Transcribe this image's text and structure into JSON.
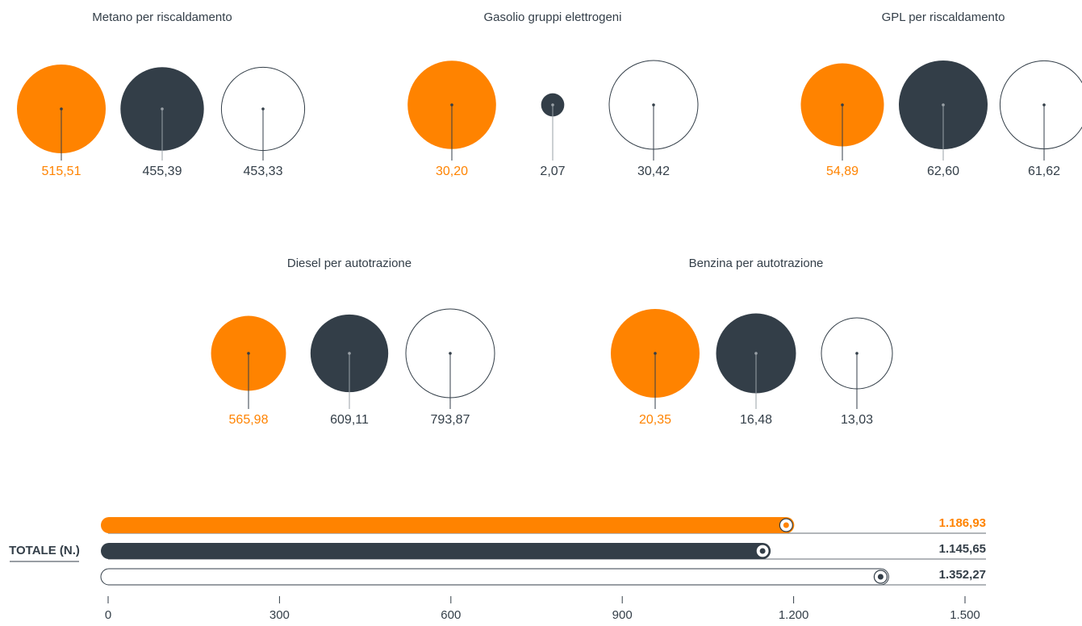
{
  "chart_data": [
    {
      "type": "bubble",
      "title": "Metano per riscaldamento",
      "values": [
        515.51,
        455.39,
        453.33
      ],
      "value_labels": [
        "515,51",
        "455,39",
        "453,33"
      ],
      "colors": [
        "#ff8300",
        "#333e48",
        "#ffffff"
      ]
    },
    {
      "type": "bubble",
      "title": "Gasolio gruppi elettrogeni",
      "values": [
        30.2,
        2.07,
        30.42
      ],
      "value_labels": [
        "30,20",
        "2,07",
        "30,42"
      ],
      "colors": [
        "#ff8300",
        "#333e48",
        "#ffffff"
      ]
    },
    {
      "type": "bubble",
      "title": "GPL per riscaldamento",
      "values": [
        54.89,
        62.6,
        61.62
      ],
      "value_labels": [
        "54,89",
        "62,60",
        "61,62"
      ],
      "colors": [
        "#ff8300",
        "#333e48",
        "#ffffff"
      ]
    },
    {
      "type": "bubble",
      "title": "Diesel per autotrazione",
      "values": [
        565.98,
        609.11,
        793.87
      ],
      "value_labels": [
        "565,98",
        "609,11",
        "793,87"
      ],
      "colors": [
        "#ff8300",
        "#333e48",
        "#ffffff"
      ]
    },
    {
      "type": "bubble",
      "title": "Benzina per autotrazione",
      "values": [
        20.35,
        16.48,
        13.03
      ],
      "value_labels": [
        "20,35",
        "16,48",
        "13,03"
      ],
      "colors": [
        "#ff8300",
        "#333e48",
        "#ffffff"
      ]
    },
    {
      "type": "bar",
      "orientation": "horizontal",
      "label": "TOTALE (N.)",
      "values": [
        1186.93,
        1145.65,
        1352.27
      ],
      "value_labels": [
        "1.186,93",
        "1.145,65",
        "1.352,27"
      ],
      "colors": [
        "#ff8300",
        "#333e48",
        "#ffffff"
      ],
      "xlim": [
        0,
        1500
      ],
      "xticks": [
        0,
        300,
        600,
        900,
        {
          "value": 1200,
          "label": "1.200"
        },
        {
          "value": 1500,
          "label": "1.500"
        }
      ]
    }
  ]
}
